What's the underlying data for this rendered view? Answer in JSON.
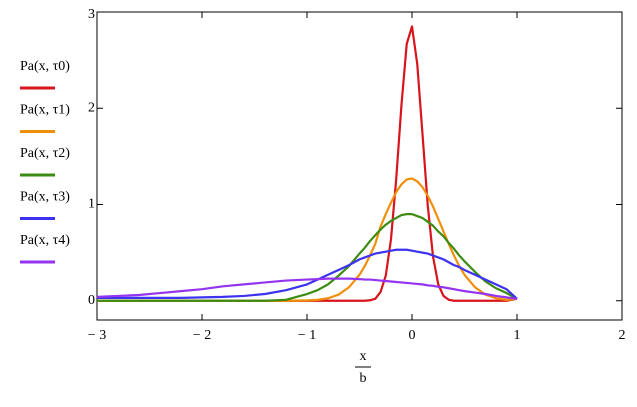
{
  "chart_data": {
    "type": "line",
    "x_label": {
      "numerator": "x",
      "denominator": "b"
    },
    "x": [
      -3,
      -2.8,
      -2.6,
      -2.4,
      -2.2,
      -2,
      -1.8,
      -1.6,
      -1.4,
      -1.2,
      -1,
      -0.9,
      -0.8,
      -0.7,
      -0.6,
      -0.5,
      -0.45,
      -0.4,
      -0.35,
      -0.3,
      -0.25,
      -0.2,
      -0.15,
      -0.1,
      -0.05,
      0,
      0.05,
      0.1,
      0.15,
      0.2,
      0.25,
      0.3,
      0.35,
      0.4,
      0.45,
      0.5,
      0.6,
      0.7,
      0.8,
      0.9,
      1
    ],
    "series": [
      {
        "name": "Pa(x, τ0)",
        "color": "#d8141c",
        "values": [
          0,
          0,
          0,
          0,
          0,
          0,
          0,
          0,
          0,
          0,
          0,
          0,
          0,
          0,
          0,
          0,
          0,
          0.005,
          0.02,
          0.09,
          0.26,
          0.64,
          1.27,
          2.04,
          2.67,
          2.85,
          2.46,
          1.73,
          0.99,
          0.46,
          0.17,
          0.05,
          0.01,
          0,
          0,
          0,
          0,
          0,
          0,
          0,
          0.02
        ]
      },
      {
        "name": "Pa(x, τ1)",
        "color": "#f0900a",
        "values": [
          0,
          0,
          0,
          0,
          0,
          0,
          0,
          0,
          0,
          0,
          0.004,
          0.009,
          0.026,
          0.063,
          0.14,
          0.27,
          0.36,
          0.47,
          0.59,
          0.77,
          0.9,
          1.02,
          1.13,
          1.21,
          1.26,
          1.27,
          1.24,
          1.18,
          1.09,
          0.98,
          0.85,
          0.72,
          0.59,
          0.47,
          0.36,
          0.27,
          0.14,
          0.063,
          0.026,
          0.009,
          0.02
        ]
      },
      {
        "name": "Pa(x, τ2)",
        "color": "#3c8c12",
        "values": [
          0,
          0,
          0,
          0,
          0,
          0,
          0,
          0,
          0,
          0.01,
          0.07,
          0.11,
          0.17,
          0.26,
          0.36,
          0.49,
          0.55,
          0.62,
          0.68,
          0.74,
          0.79,
          0.83,
          0.86,
          0.89,
          0.9,
          0.9,
          0.88,
          0.86,
          0.82,
          0.78,
          0.72,
          0.67,
          0.6,
          0.54,
          0.47,
          0.41,
          0.3,
          0.2,
          0.13,
          0.08,
          0.02
        ]
      },
      {
        "name": "Pa(x, τ3)",
        "color": "#3c32f0",
        "values": [
          0.03,
          0.03,
          0.03,
          0.03,
          0.03,
          0.035,
          0.04,
          0.05,
          0.07,
          0.11,
          0.17,
          0.22,
          0.27,
          0.32,
          0.37,
          0.43,
          0.45,
          0.47,
          0.49,
          0.5,
          0.51,
          0.52,
          0.53,
          0.53,
          0.53,
          0.52,
          0.51,
          0.5,
          0.49,
          0.47,
          0.45,
          0.43,
          0.4,
          0.37,
          0.35,
          0.32,
          0.27,
          0.22,
          0.17,
          0.12,
          0.02
        ]
      },
      {
        "name": "Pa(x, τ4)",
        "color": "#9434f0",
        "values": [
          0.04,
          0.05,
          0.06,
          0.08,
          0.1,
          0.12,
          0.15,
          0.17,
          0.19,
          0.21,
          0.22,
          0.225,
          0.23,
          0.23,
          0.23,
          0.225,
          0.22,
          0.22,
          0.215,
          0.21,
          0.205,
          0.2,
          0.195,
          0.19,
          0.185,
          0.18,
          0.175,
          0.17,
          0.16,
          0.155,
          0.145,
          0.14,
          0.13,
          0.12,
          0.11,
          0.1,
          0.085,
          0.07,
          0.05,
          0.035,
          0.02
        ]
      }
    ],
    "xlim": [
      -3,
      2
    ],
    "xticks": [
      {
        "value": -3,
        "label": "− 3"
      },
      {
        "value": -2,
        "label": "− 2"
      },
      {
        "value": -1,
        "label": "− 1"
      },
      0,
      1,
      2
    ],
    "ylim": [
      -0.2,
      3
    ],
    "yticks": [
      0,
      1,
      2,
      3
    ],
    "grid": false
  }
}
